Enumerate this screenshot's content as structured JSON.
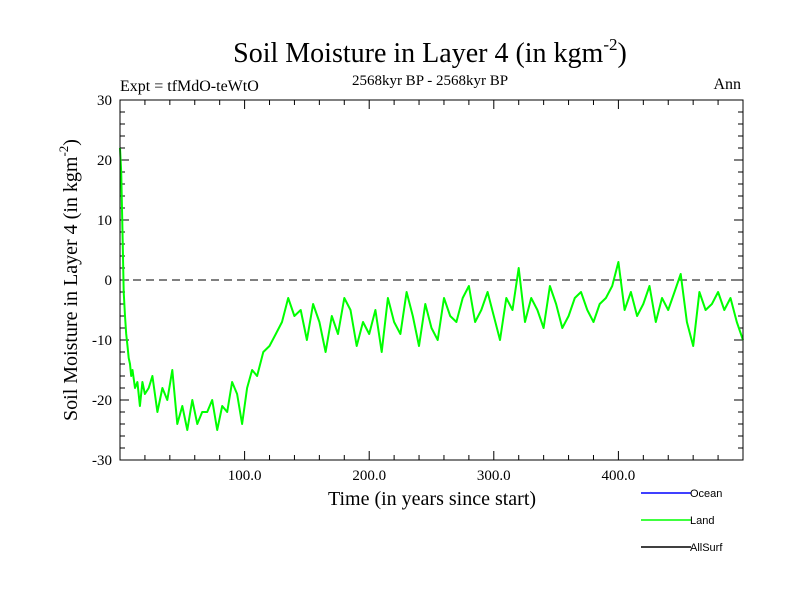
{
  "chart_data": {
    "type": "line",
    "title": "Soil Moisture in Layer 4 (in kgm",
    "title_sup": "-2",
    "title_close": ")",
    "subtitle": "2568kyr BP - 2568kyr BP",
    "expt_label": "Expt = tfMdO-teWtO",
    "season_label": "Ann",
    "xlabel": "Time (in years since start)",
    "ylabel": "Soil Moisture in Layer 4 (in kgm",
    "ylabel_sup": "-2",
    "ylabel_close": ")",
    "xlim": [
      0,
      500
    ],
    "ylim": [
      -30,
      30
    ],
    "x_ticks": [
      {
        "value": 100,
        "label": "100.0"
      },
      {
        "value": 200,
        "label": "200.0"
      },
      {
        "value": 300,
        "label": "300.0"
      },
      {
        "value": 400,
        "label": "400.0"
      }
    ],
    "y_ticks": [
      {
        "value": -30,
        "label": "-30"
      },
      {
        "value": -20,
        "label": "-20"
      },
      {
        "value": -10,
        "label": "-10"
      },
      {
        "value": 0,
        "label": "0"
      },
      {
        "value": 10,
        "label": "10"
      },
      {
        "value": 20,
        "label": "20"
      },
      {
        "value": 30,
        "label": "30"
      }
    ],
    "reference_line": {
      "y": 0,
      "style": "dashed"
    },
    "legend": [
      {
        "name": "Ocean",
        "color": "#0000ff"
      },
      {
        "name": "Land",
        "color": "#00ff00"
      },
      {
        "name": "AllSurf",
        "color": "#000000"
      }
    ],
    "series": [
      {
        "name": "Land",
        "color": "#00ff00",
        "x": [
          0,
          1,
          2,
          3,
          4,
          5,
          6,
          7,
          8,
          9,
          10,
          12,
          14,
          16,
          18,
          20,
          23,
          26,
          30,
          34,
          38,
          42,
          46,
          50,
          54,
          58,
          62,
          66,
          70,
          74,
          78,
          82,
          86,
          90,
          94,
          98,
          102,
          106,
          110,
          115,
          120,
          125,
          130,
          135,
          140,
          145,
          150,
          155,
          160,
          165,
          170,
          175,
          180,
          185,
          190,
          195,
          200,
          205,
          210,
          215,
          220,
          225,
          230,
          235,
          240,
          245,
          250,
          255,
          260,
          265,
          270,
          275,
          280,
          285,
          290,
          295,
          300,
          305,
          310,
          315,
          320,
          325,
          330,
          335,
          340,
          345,
          350,
          355,
          360,
          365,
          370,
          375,
          380,
          385,
          390,
          395,
          400,
          405,
          410,
          415,
          420,
          425,
          430,
          435,
          440,
          445,
          450,
          455,
          460,
          465,
          470,
          475,
          480,
          485,
          490,
          495,
          500
        ],
        "values": [
          22,
          18,
          8,
          -2,
          -6,
          -9,
          -11,
          -13,
          -14,
          -16,
          -15,
          -18,
          -17,
          -21,
          -17,
          -19,
          -18,
          -16,
          -22,
          -18,
          -20,
          -15,
          -24,
          -21,
          -25,
          -20,
          -24,
          -22,
          -22,
          -20,
          -25,
          -21,
          -22,
          -17,
          -19,
          -24,
          -18,
          -15,
          -16,
          -12,
          -11,
          -9,
          -7,
          -3,
          -6,
          -5,
          -10,
          -4,
          -7,
          -12,
          -6,
          -9,
          -3,
          -5,
          -11,
          -7,
          -9,
          -5,
          -12,
          -3,
          -7,
          -9,
          -2,
          -6,
          -11,
          -4,
          -8,
          -10,
          -3,
          -6,
          -7,
          -3,
          -1,
          -7,
          -5,
          -2,
          -6,
          -10,
          -3,
          -5,
          2,
          -7,
          -3,
          -5,
          -8,
          -1,
          -4,
          -8,
          -6,
          -3,
          -2,
          -5,
          -7,
          -4,
          -3,
          -1,
          3,
          -5,
          -2,
          -6,
          -4,
          -1,
          -7,
          -3,
          -5,
          -2,
          1,
          -7,
          -11,
          -2,
          -5,
          -4,
          -2,
          -5,
          -3,
          -7,
          -10
        ]
      }
    ]
  }
}
